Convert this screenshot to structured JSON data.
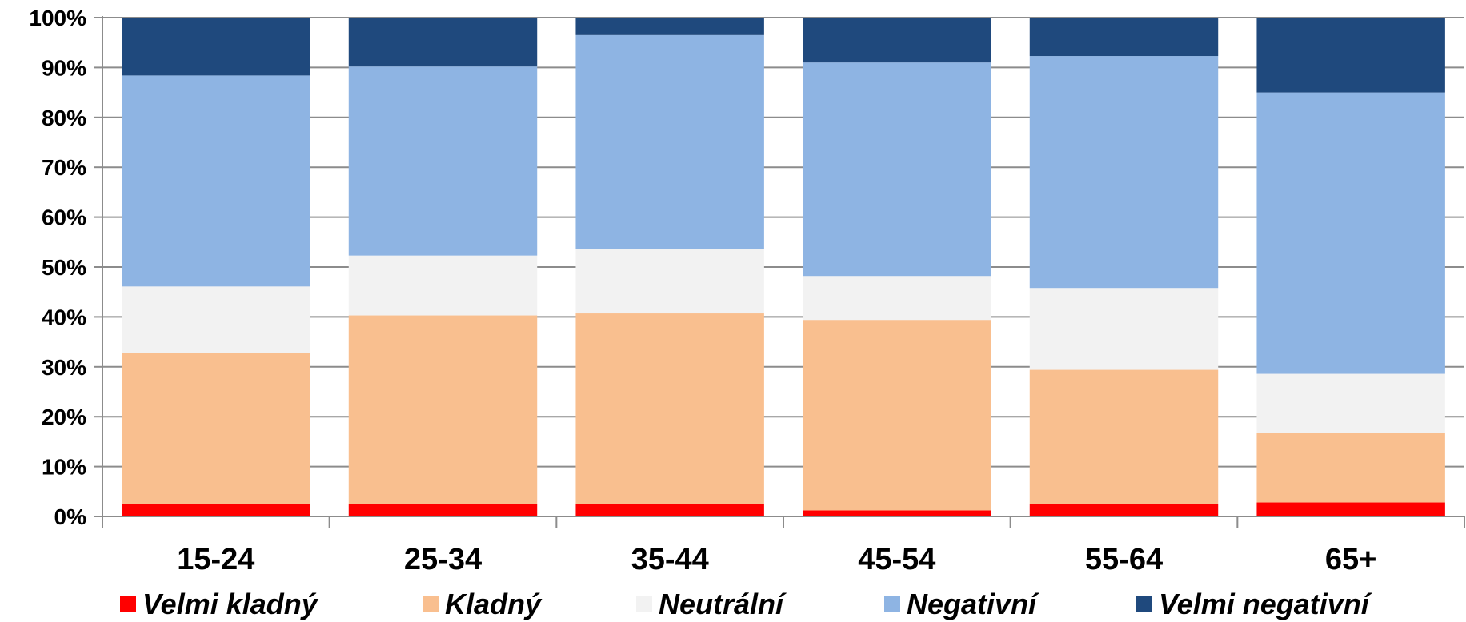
{
  "chart_data": {
    "type": "bar",
    "stacked": "percent",
    "title": "",
    "xlabel": "",
    "ylabel": "",
    "ylim": [
      0,
      100
    ],
    "yticks": [
      "0%",
      "10%",
      "20%",
      "30%",
      "40%",
      "50%",
      "60%",
      "70%",
      "80%",
      "90%",
      "100%"
    ],
    "grid": true,
    "legend_position": "bottom",
    "categories": [
      "15-24",
      "25-34",
      "35-44",
      "45-54",
      "55-64",
      "65+"
    ],
    "series": [
      {
        "name": "Velmi kladný",
        "color": "#ff0000",
        "values": [
          2.5,
          2.5,
          2.5,
          1.2,
          2.5,
          2.8
        ]
      },
      {
        "name": "Kladný",
        "color": "#f9bf8f",
        "values": [
          30.3,
          37.8,
          38.2,
          38.2,
          26.9,
          14.0
        ]
      },
      {
        "name": "Neutrální",
        "color": "#f2f2f2",
        "values": [
          13.3,
          12.0,
          12.9,
          8.8,
          16.4,
          11.8
        ]
      },
      {
        "name": "Negativní",
        "color": "#8eb4e3",
        "values": [
          42.3,
          37.9,
          42.9,
          42.8,
          46.5,
          56.4
        ]
      },
      {
        "name": "Velmi negativní",
        "color": "#1f497d",
        "values": [
          11.6,
          9.8,
          3.5,
          9.0,
          7.7,
          15.0
        ]
      }
    ]
  }
}
